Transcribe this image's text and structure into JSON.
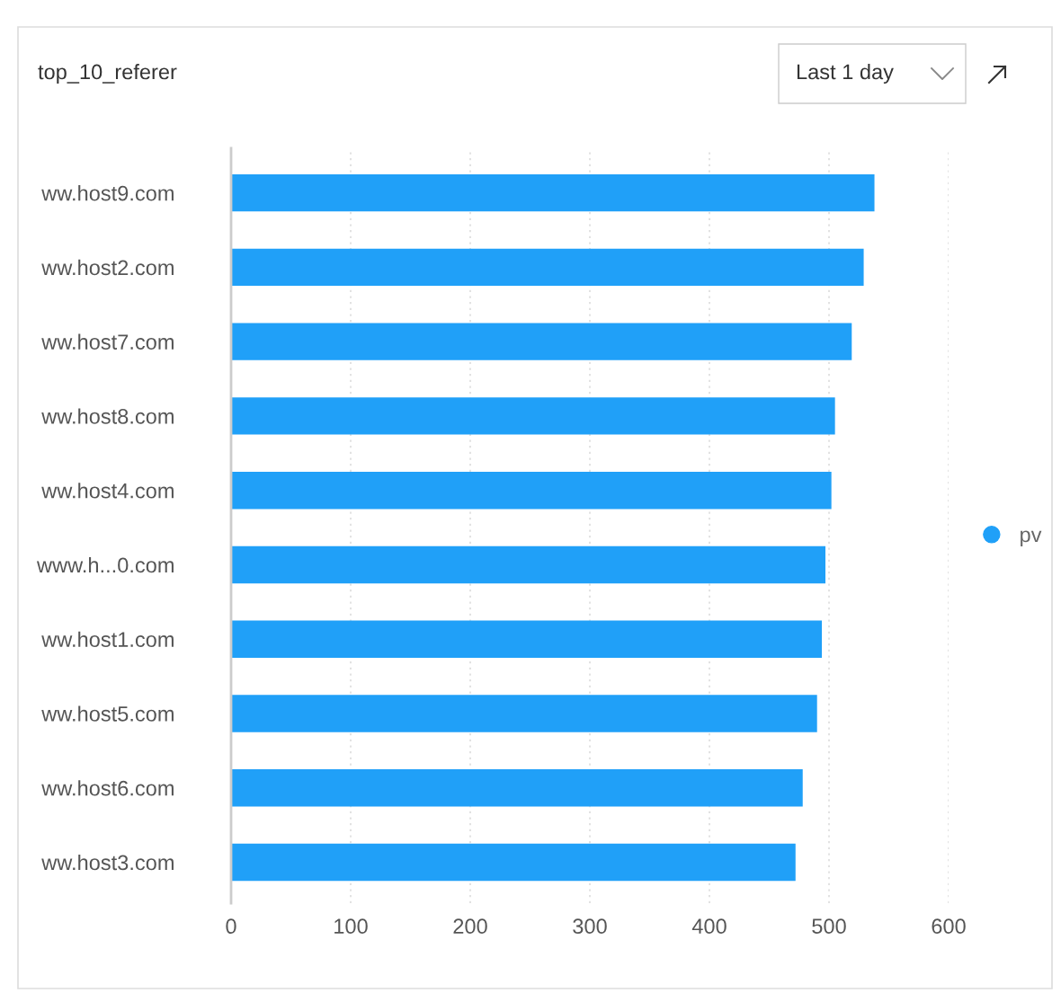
{
  "chart_data": {
    "type": "bar",
    "orientation": "horizontal",
    "title": "top_10_referer",
    "annotations": [
      "Last 1 day"
    ],
    "categories": [
      "ww.host9.com",
      "ww.host2.com",
      "ww.host7.com",
      "ww.host8.com",
      "ww.host4.com",
      "www.h...0.com",
      "ww.host1.com",
      "ww.host5.com",
      "ww.host6.com",
      "ww.host3.com"
    ],
    "series": [
      {
        "name": "pv",
        "color": "#20a0f8",
        "values": [
          538,
          529,
          519,
          505,
          502,
          497,
          494,
          490,
          478,
          472
        ]
      }
    ],
    "xlim": [
      0,
      600
    ],
    "xticks": [
      0,
      100,
      200,
      300,
      400,
      500,
      600
    ],
    "grid": "x",
    "legend": "right"
  }
}
